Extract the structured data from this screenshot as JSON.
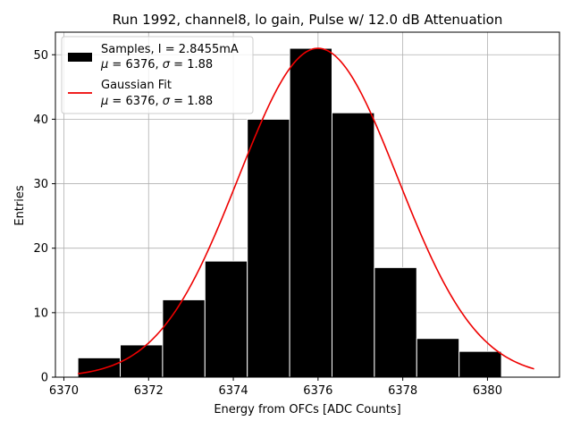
{
  "chart_data": {
    "type": "histogram",
    "title": "Run 1992, channel8, lo gain, Pulse w/ 12.0 dB Attenuation",
    "xlabel": "Energy from OFCs [ADC Counts]",
    "ylabel": "Entries",
    "xlim": [
      6369.8,
      6381.7
    ],
    "ylim": [
      0,
      53.5
    ],
    "x_ticks": [
      6370,
      6372,
      6374,
      6376,
      6378,
      6380
    ],
    "y_ticks": [
      0,
      10,
      20,
      30,
      40,
      50
    ],
    "grid": true,
    "legend_position": "top-left",
    "bins": [
      {
        "x0": 6370.33,
        "x1": 6371.33,
        "count": 3
      },
      {
        "x0": 6371.33,
        "x1": 6372.33,
        "count": 5
      },
      {
        "x0": 6372.33,
        "x1": 6373.33,
        "count": 12
      },
      {
        "x0": 6373.33,
        "x1": 6374.33,
        "count": 18
      },
      {
        "x0": 6374.33,
        "x1": 6375.33,
        "count": 40
      },
      {
        "x0": 6375.33,
        "x1": 6376.33,
        "count": 51
      },
      {
        "x0": 6376.33,
        "x1": 6377.33,
        "count": 41
      },
      {
        "x0": 6377.33,
        "x1": 6378.33,
        "count": 17
      },
      {
        "x0": 6378.33,
        "x1": 6379.33,
        "count": 6
      },
      {
        "x0": 6379.33,
        "x1": 6380.33,
        "count": 4
      }
    ],
    "fit": {
      "type": "gaussian",
      "amplitude": 51,
      "mu": 6376.0,
      "sigma": 1.88,
      "x_range": [
        6370.33,
        6381.1
      ]
    },
    "colors": {
      "bar_fill": "#000000",
      "bar_edge": "#ffffff",
      "fit_line": "#ee0000",
      "grid": "#b0b0b0",
      "legend_border": "#cccccc"
    },
    "legend": [
      {
        "kind": "bar",
        "line1": "Samples, I = 2.8455mA",
        "mu_symbol": "μ",
        "mu_text": " = 6376, ",
        "sigma_symbol": "σ",
        "sigma_text": " = 1.88"
      },
      {
        "kind": "line",
        "line1": "Gaussian Fit",
        "mu_symbol": "μ",
        "mu_text": " = 6376, ",
        "sigma_symbol": "σ",
        "sigma_text": " = 1.88"
      }
    ]
  }
}
